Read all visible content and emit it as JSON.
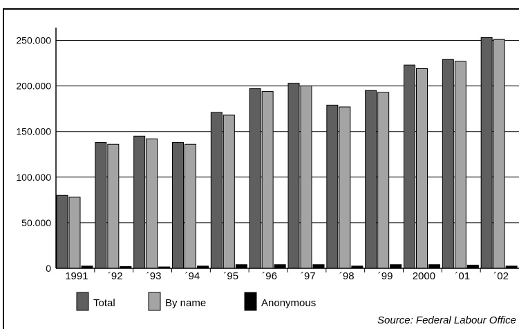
{
  "colors": {
    "total": "#5f5f5f",
    "by_name": "#a4a4a4",
    "anonymous": "#000000",
    "axis": "#000000",
    "grid": "#000000",
    "background": "#ffffff"
  },
  "source": "Source: Federal Labour Office",
  "chart_data": {
    "type": "bar",
    "title": "",
    "xlabel": "",
    "ylabel": "",
    "categories": [
      "1991",
      "´92",
      "´93",
      "´94",
      "´95",
      "´96",
      "´97",
      "´98",
      "´99",
      "2000",
      "´01",
      "´02"
    ],
    "y_ticks": [
      0,
      50000,
      100000,
      150000,
      200000,
      250000
    ],
    "y_tick_labels": [
      "0",
      "50.000",
      "100.000",
      "150.000",
      "200.000",
      "250.000"
    ],
    "ylim": [
      0,
      264000
    ],
    "grid": true,
    "legend_position": "bottom-left",
    "series": [
      {
        "name": "Total",
        "color": "#5f5f5f",
        "values": [
          80000,
          138000,
          145000,
          138000,
          171000,
          197000,
          203000,
          179000,
          195000,
          223000,
          229000,
          253000
        ]
      },
      {
        "name": "By name",
        "color": "#a4a4a4",
        "values": [
          78000,
          136000,
          142000,
          136000,
          168000,
          194000,
          200000,
          177000,
          193000,
          219000,
          227000,
          251000
        ]
      },
      {
        "name": "Anonymous",
        "color": "#000000",
        "values": [
          2500,
          2000,
          1500,
          2500,
          4000,
          4000,
          4000,
          2500,
          4000,
          4000,
          3500,
          2500
        ]
      }
    ]
  }
}
